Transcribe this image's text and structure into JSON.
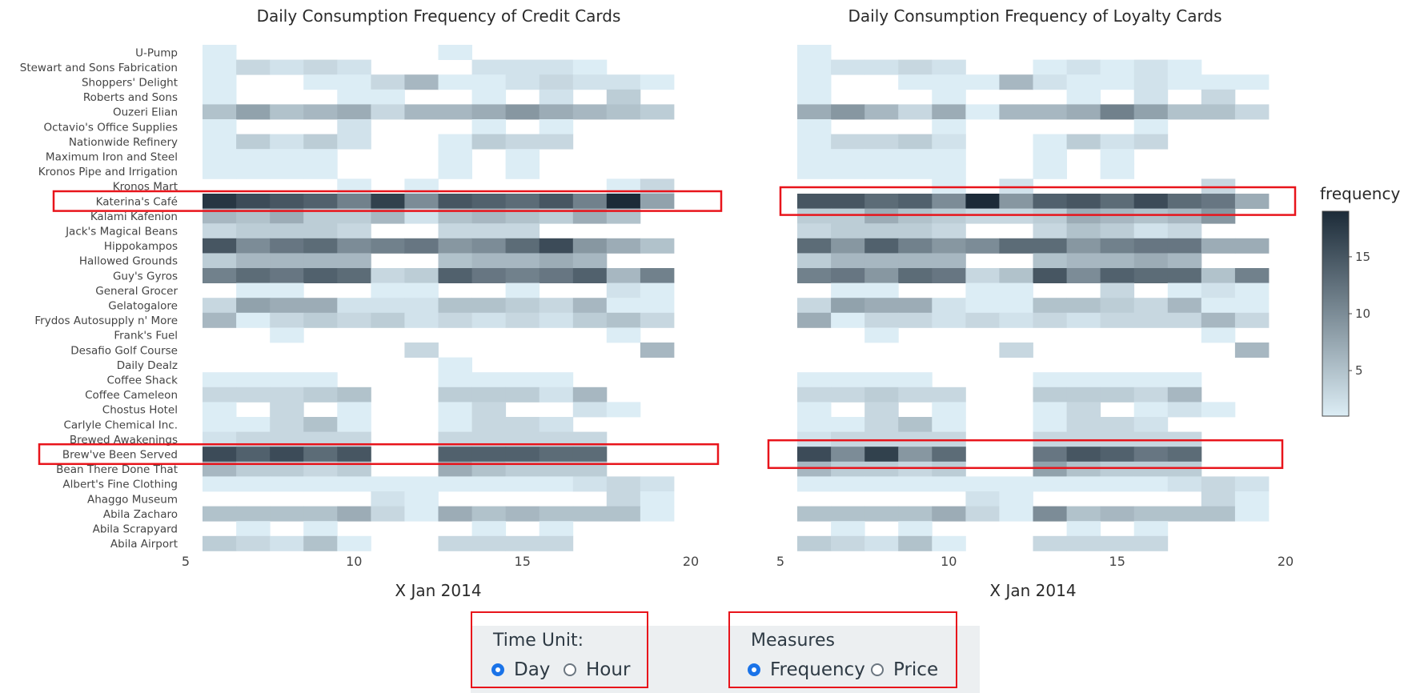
{
  "chart_data": [
    {
      "type": "heatmap",
      "title": "Daily Consumption Frequency of Credit Cards",
      "xlabel": "X Jan 2014",
      "ylabel": "",
      "xlim": [
        5,
        20
      ],
      "x_ticks": [
        5,
        10,
        15,
        20
      ],
      "x": [
        6,
        7,
        8,
        9,
        10,
        11,
        12,
        13,
        14,
        15,
        16,
        17,
        18,
        19
      ],
      "y": [
        "U-Pump",
        "Stewart and Sons Fabrication",
        "Shoppers' Delight",
        "Roberts and Sons",
        "Ouzeri Elian",
        "Octavio's Office Supplies",
        "Nationwide Refinery",
        "Maximum Iron and Steel",
        "Kronos Pipe and Irrigation",
        "Kronos Mart",
        "Katerina's Café",
        "Kalami Kafenion",
        "Jack's Magical Beans",
        "Hippokampos",
        "Hallowed Grounds",
        "Guy's Gyros",
        "General Grocer",
        "Gelatogalore",
        "Frydos Autosupply n' More",
        "Frank's Fuel",
        "Desafio Golf Course",
        "Daily Dealz",
        "Coffee Shack",
        "Coffee Cameleon",
        "Chostus Hotel",
        "Carlyle Chemical Inc.",
        "Brewed Awakenings",
        "Brew've Been Served",
        "Bean There Done That",
        "Albert's Fine Clothing",
        "Ahaggo Museum",
        "Abila Zacharo",
        "Abila Scrapyard",
        "Abila Airport"
      ],
      "z": [
        [
          1,
          0,
          0,
          0,
          0,
          0,
          0,
          1,
          0,
          0,
          0,
          0,
          0,
          0
        ],
        [
          1,
          3,
          2,
          3,
          2,
          0,
          0,
          0,
          2,
          2,
          2,
          1,
          0,
          0
        ],
        [
          1,
          0,
          0,
          1,
          1,
          3,
          6,
          1,
          1,
          2,
          3,
          2,
          2,
          1
        ],
        [
          1,
          0,
          0,
          0,
          1,
          1,
          0,
          0,
          1,
          0,
          2,
          0,
          4,
          0
        ],
        [
          5,
          8,
          5,
          6,
          7,
          3,
          6,
          6,
          7,
          9,
          7,
          6,
          5,
          4
        ],
        [
          1,
          0,
          0,
          0,
          2,
          0,
          0,
          0,
          1,
          0,
          1,
          0,
          0,
          0
        ],
        [
          1,
          4,
          2,
          4,
          2,
          0,
          0,
          1,
          4,
          3,
          3,
          0,
          0,
          0
        ],
        [
          1,
          1,
          1,
          1,
          0,
          0,
          0,
          1,
          0,
          1,
          0,
          0,
          0,
          0
        ],
        [
          1,
          1,
          1,
          1,
          0,
          0,
          0,
          1,
          0,
          1,
          0,
          0,
          0,
          0
        ],
        [
          0,
          0,
          0,
          0,
          1,
          0,
          1,
          0,
          0,
          0,
          0,
          0,
          1,
          3
        ],
        [
          18,
          16,
          15,
          14,
          11,
          17,
          10,
          15,
          14,
          13,
          15,
          11,
          19,
          8
        ],
        [
          6,
          5,
          7,
          4,
          4,
          6,
          2,
          5,
          6,
          5,
          4,
          7,
          5,
          0
        ],
        [
          3,
          4,
          4,
          4,
          3,
          0,
          0,
          3,
          3,
          3,
          0,
          0,
          0,
          0
        ],
        [
          15,
          10,
          12,
          13,
          10,
          11,
          12,
          9,
          10,
          13,
          16,
          9,
          7,
          5
        ],
        [
          4,
          6,
          6,
          6,
          6,
          0,
          0,
          5,
          6,
          6,
          7,
          6,
          0,
          0
        ],
        [
          11,
          13,
          12,
          14,
          13,
          3,
          4,
          14,
          12,
          11,
          12,
          14,
          6,
          11
        ],
        [
          0,
          1,
          1,
          0,
          0,
          1,
          1,
          0,
          0,
          1,
          0,
          0,
          2,
          1
        ],
        [
          3,
          8,
          7,
          7,
          2,
          2,
          2,
          5,
          5,
          4,
          3,
          6,
          1,
          1
        ],
        [
          6,
          1,
          3,
          4,
          3,
          4,
          2,
          3,
          2,
          3,
          2,
          4,
          5,
          3
        ],
        [
          0,
          0,
          1,
          0,
          0,
          0,
          0,
          0,
          0,
          0,
          0,
          0,
          1,
          0
        ],
        [
          0,
          0,
          0,
          0,
          0,
          0,
          3,
          0,
          0,
          0,
          0,
          0,
          0,
          6
        ],
        [
          0,
          0,
          0,
          0,
          0,
          0,
          0,
          1,
          0,
          0,
          0,
          0,
          0,
          0
        ],
        [
          1,
          1,
          1,
          1,
          0,
          0,
          0,
          1,
          1,
          1,
          1,
          0,
          0,
          0
        ],
        [
          3,
          3,
          3,
          4,
          5,
          0,
          0,
          4,
          4,
          4,
          2,
          6,
          0,
          0
        ],
        [
          1,
          0,
          3,
          0,
          1,
          0,
          0,
          1,
          3,
          0,
          0,
          2,
          1,
          0
        ],
        [
          1,
          1,
          3,
          5,
          1,
          0,
          0,
          1,
          3,
          3,
          2,
          0,
          0,
          0
        ],
        [
          2,
          3,
          3,
          3,
          3,
          0,
          0,
          3,
          3,
          3,
          3,
          3,
          0,
          0
        ],
        [
          16,
          14,
          16,
          13,
          15,
          0,
          0,
          14,
          14,
          14,
          13,
          13,
          0,
          0
        ],
        [
          6,
          4,
          4,
          3,
          4,
          0,
          0,
          7,
          5,
          4,
          4,
          4,
          0,
          0
        ],
        [
          1,
          1,
          1,
          1,
          1,
          1,
          1,
          1,
          1,
          1,
          1,
          2,
          3,
          2
        ],
        [
          0,
          0,
          0,
          0,
          0,
          2,
          1,
          0,
          0,
          0,
          0,
          0,
          3,
          1
        ],
        [
          5,
          5,
          5,
          5,
          7,
          3,
          1,
          7,
          5,
          6,
          5,
          5,
          5,
          1
        ],
        [
          0,
          1,
          0,
          1,
          0,
          0,
          0,
          0,
          1,
          0,
          1,
          0,
          0,
          0
        ],
        [
          4,
          3,
          2,
          5,
          1,
          0,
          0,
          3,
          3,
          3,
          3,
          0,
          0,
          0
        ]
      ],
      "annotations": [
        "Katerina's Café",
        "Brew've Been Served"
      ]
    },
    {
      "type": "heatmap",
      "title": "Daily Consumption Frequency of Loyalty Cards",
      "xlabel": "X Jan 2014",
      "ylabel": "",
      "xlim": [
        5,
        20
      ],
      "x_ticks": [
        5,
        10,
        15,
        20
      ],
      "x": [
        6,
        7,
        8,
        9,
        10,
        11,
        12,
        13,
        14,
        15,
        16,
        17,
        18,
        19
      ],
      "y": [
        "U-Pump",
        "Stewart and Sons Fabrication",
        "Shoppers' Delight",
        "Roberts and Sons",
        "Ouzeri Elian",
        "Octavio's Office Supplies",
        "Nationwide Refinery",
        "Maximum Iron and Steel",
        "Kronos Pipe and Irrigation",
        "Kronos Mart",
        "Katerina's Café",
        "Kalami Kafenion",
        "Jack's Magical Beans",
        "Hippokampos",
        "Hallowed Grounds",
        "Guy's Gyros",
        "General Grocer",
        "Gelatogalore",
        "Frydos Autosupply n' More",
        "Frank's Fuel",
        "Desafio Golf Course",
        "Daily Dealz",
        "Coffee Shack",
        "Coffee Cameleon",
        "Chostus Hotel",
        "Carlyle Chemical Inc.",
        "Brewed Awakenings",
        "Brew've Been Served",
        "Bean There Done That",
        "Albert's Fine Clothing",
        "Ahaggo Museum",
        "Abila Zacharo",
        "Abila Scrapyard",
        "Abila Airport"
      ],
      "z": [
        [
          1,
          0,
          0,
          0,
          0,
          0,
          0,
          0,
          0,
          0,
          0,
          0,
          0,
          0
        ],
        [
          1,
          2,
          2,
          3,
          2,
          0,
          0,
          1,
          2,
          1,
          2,
          1,
          0,
          0
        ],
        [
          1,
          0,
          0,
          1,
          1,
          1,
          6,
          2,
          1,
          1,
          2,
          1,
          1,
          1
        ],
        [
          1,
          0,
          0,
          0,
          1,
          0,
          0,
          0,
          1,
          0,
          2,
          0,
          3,
          0
        ],
        [
          7,
          9,
          6,
          3,
          7,
          1,
          6,
          6,
          7,
          11,
          8,
          5,
          5,
          3
        ],
        [
          1,
          0,
          0,
          0,
          1,
          0,
          0,
          0,
          0,
          0,
          1,
          0,
          0,
          0
        ],
        [
          1,
          3,
          3,
          4,
          2,
          0,
          0,
          1,
          4,
          2,
          3,
          0,
          0,
          0
        ],
        [
          1,
          1,
          1,
          1,
          1,
          0,
          0,
          1,
          0,
          1,
          0,
          0,
          0,
          0
        ],
        [
          1,
          1,
          1,
          1,
          1,
          0,
          0,
          1,
          0,
          1,
          0,
          0,
          0,
          0
        ],
        [
          0,
          0,
          0,
          0,
          1,
          0,
          2,
          0,
          0,
          0,
          0,
          0,
          3,
          0
        ],
        [
          15,
          15,
          13,
          14,
          10,
          19,
          9,
          14,
          15,
          13,
          16,
          13,
          12,
          7
        ],
        [
          4,
          4,
          7,
          5,
          4,
          3,
          3,
          4,
          7,
          6,
          5,
          6,
          9,
          0
        ],
        [
          3,
          4,
          4,
          4,
          3,
          0,
          0,
          3,
          5,
          4,
          2,
          3,
          0,
          0
        ],
        [
          13,
          9,
          14,
          11,
          9,
          10,
          13,
          13,
          9,
          11,
          12,
          12,
          7,
          7
        ],
        [
          4,
          6,
          6,
          6,
          6,
          0,
          0,
          5,
          6,
          6,
          7,
          6,
          0,
          0
        ],
        [
          11,
          12,
          9,
          13,
          12,
          3,
          5,
          15,
          10,
          14,
          13,
          13,
          5,
          11
        ],
        [
          0,
          1,
          1,
          0,
          0,
          1,
          1,
          0,
          0,
          3,
          0,
          1,
          2,
          1
        ],
        [
          3,
          8,
          7,
          7,
          2,
          1,
          1,
          5,
          5,
          4,
          3,
          6,
          1,
          1
        ],
        [
          7,
          1,
          3,
          3,
          2,
          3,
          2,
          3,
          2,
          3,
          3,
          3,
          6,
          3
        ],
        [
          0,
          0,
          1,
          0,
          0,
          0,
          0,
          0,
          0,
          0,
          0,
          0,
          1,
          0
        ],
        [
          0,
          0,
          0,
          0,
          0,
          0,
          3,
          0,
          0,
          0,
          0,
          0,
          0,
          6
        ],
        [
          0,
          0,
          0,
          0,
          0,
          0,
          0,
          0,
          0,
          0,
          0,
          0,
          0,
          0
        ],
        [
          1,
          1,
          1,
          1,
          0,
          0,
          0,
          1,
          1,
          1,
          1,
          1,
          0,
          0
        ],
        [
          3,
          3,
          4,
          3,
          3,
          0,
          0,
          4,
          4,
          4,
          3,
          6,
          0,
          0
        ],
        [
          1,
          0,
          3,
          0,
          1,
          0,
          0,
          1,
          3,
          0,
          1,
          2,
          1,
          0
        ],
        [
          1,
          1,
          3,
          5,
          1,
          0,
          0,
          1,
          3,
          3,
          2,
          0,
          0,
          0
        ],
        [
          2,
          3,
          3,
          3,
          3,
          0,
          0,
          3,
          3,
          3,
          3,
          3,
          0,
          0
        ],
        [
          16,
          10,
          17,
          9,
          13,
          0,
          0,
          12,
          15,
          14,
          12,
          13,
          0,
          0
        ],
        [
          6,
          4,
          4,
          3,
          4,
          0,
          0,
          8,
          5,
          4,
          4,
          4,
          0,
          0
        ],
        [
          1,
          1,
          1,
          1,
          1,
          1,
          1,
          1,
          1,
          1,
          1,
          2,
          3,
          2
        ],
        [
          0,
          0,
          0,
          0,
          0,
          2,
          1,
          0,
          0,
          0,
          0,
          0,
          3,
          1
        ],
        [
          5,
          5,
          5,
          5,
          7,
          3,
          1,
          10,
          5,
          6,
          5,
          5,
          5,
          1
        ],
        [
          0,
          1,
          0,
          1,
          0,
          0,
          0,
          0,
          1,
          0,
          1,
          0,
          0,
          0
        ],
        [
          4,
          3,
          2,
          5,
          1,
          0,
          0,
          3,
          3,
          3,
          3,
          0,
          0,
          0
        ]
      ],
      "annotations": [
        "Katerina's Café",
        "Brew've Been Served"
      ]
    }
  ],
  "colorbar": {
    "title": "frequency",
    "ticks": [
      5,
      10,
      15
    ],
    "range": [
      1,
      19
    ],
    "colors": [
      "#dcedf5",
      "#1c2b38"
    ]
  },
  "annotation_color": "#e8141b",
  "controls": {
    "time_unit": {
      "title": "Time Unit:",
      "options": [
        {
          "label": "Day",
          "selected": true
        },
        {
          "label": "Hour",
          "selected": false
        }
      ]
    },
    "measures": {
      "title": "Measures",
      "options": [
        {
          "label": "Frequency",
          "selected": true
        },
        {
          "label": "Price",
          "selected": false
        }
      ]
    }
  }
}
